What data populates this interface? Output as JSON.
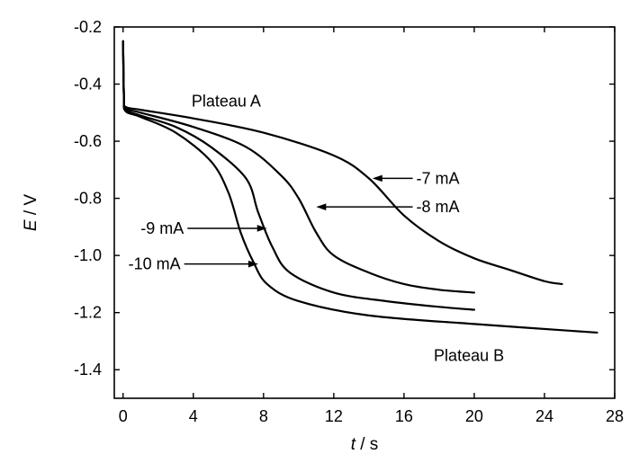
{
  "chart_data": {
    "type": "line",
    "xlabel_var": "t",
    "xlabel_unit": " / s",
    "ylabel_var": "E",
    "ylabel_unit": " / V",
    "xlim": [
      -0.5,
      28
    ],
    "ylim": [
      -1.5,
      -0.2
    ],
    "xticks": [
      0,
      4,
      8,
      12,
      16,
      20,
      24,
      28
    ],
    "yticks": [
      -0.2,
      -0.4,
      -0.6,
      -0.8,
      -1.0,
      -1.2,
      -1.4
    ],
    "ytick_labels": [
      "-0.2",
      "-0.4",
      "-0.6",
      "-0.8",
      "-1.0",
      "-1.2",
      "-1.4"
    ],
    "grid": false,
    "series": [
      {
        "name": "-7 mA",
        "points": [
          [
            0,
            -0.25
          ],
          [
            0.05,
            -0.45
          ],
          [
            0.15,
            -0.48
          ],
          [
            1,
            -0.49
          ],
          [
            4,
            -0.52
          ],
          [
            8,
            -0.57
          ],
          [
            12,
            -0.65
          ],
          [
            14,
            -0.73
          ],
          [
            16,
            -0.86
          ],
          [
            18,
            -0.95
          ],
          [
            20,
            -1.01
          ],
          [
            22,
            -1.05
          ],
          [
            24,
            -1.09
          ],
          [
            25,
            -1.1
          ]
        ]
      },
      {
        "name": "-8 mA",
        "points": [
          [
            0,
            -0.25
          ],
          [
            0.05,
            -0.45
          ],
          [
            0.15,
            -0.485
          ],
          [
            1,
            -0.5
          ],
          [
            4,
            -0.55
          ],
          [
            7,
            -0.62
          ],
          [
            9,
            -0.72
          ],
          [
            10,
            -0.8
          ],
          [
            11,
            -0.92
          ],
          [
            12,
            -1.0
          ],
          [
            14,
            -1.06
          ],
          [
            16,
            -1.1
          ],
          [
            18,
            -1.12
          ],
          [
            20,
            -1.13
          ]
        ]
      },
      {
        "name": "-9 mA",
        "points": [
          [
            0,
            -0.25
          ],
          [
            0.05,
            -0.45
          ],
          [
            0.15,
            -0.49
          ],
          [
            1,
            -0.51
          ],
          [
            3,
            -0.55
          ],
          [
            5,
            -0.62
          ],
          [
            7,
            -0.73
          ],
          [
            7.7,
            -0.85
          ],
          [
            8.5,
            -0.97
          ],
          [
            9.5,
            -1.06
          ],
          [
            12,
            -1.13
          ],
          [
            15,
            -1.16
          ],
          [
            18,
            -1.18
          ],
          [
            20,
            -1.19
          ]
        ]
      },
      {
        "name": "-10 mA",
        "points": [
          [
            0,
            -0.25
          ],
          [
            0.05,
            -0.45
          ],
          [
            0.15,
            -0.495
          ],
          [
            1,
            -0.515
          ],
          [
            3,
            -0.57
          ],
          [
            5,
            -0.67
          ],
          [
            6,
            -0.78
          ],
          [
            6.7,
            -0.92
          ],
          [
            7.4,
            -1.02
          ],
          [
            8.2,
            -1.1
          ],
          [
            10,
            -1.16
          ],
          [
            14,
            -1.21
          ],
          [
            20,
            -1.24
          ],
          [
            27,
            -1.27
          ]
        ]
      }
    ],
    "annotations": [
      {
        "text": "Plateau A",
        "x": 3.9,
        "y": -0.46
      },
      {
        "text": "Plateau B",
        "x": 17.7,
        "y": -1.35
      },
      {
        "text": "-7 mA",
        "x": 16.7,
        "y": -0.73,
        "arrow_to": [
          14.2,
          -0.73
        ]
      },
      {
        "text": "-8 mA",
        "x": 16.7,
        "y": -0.83,
        "arrow_to": [
          11.0,
          -0.83
        ]
      },
      {
        "text": "-9 mA",
        "x": 1.0,
        "y": -0.905,
        "arrow_to": [
          8.2,
          -0.905
        ]
      },
      {
        "text": "-10 mA",
        "x": 0.3,
        "y": -1.03,
        "arrow_to": [
          7.7,
          -1.03
        ]
      }
    ]
  }
}
